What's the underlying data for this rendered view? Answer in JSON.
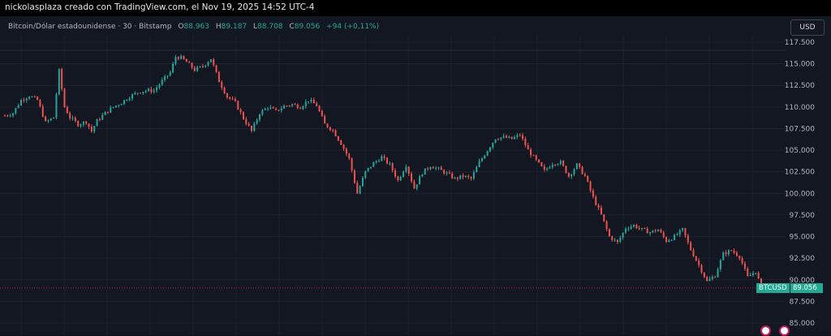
{
  "header": {
    "attribution": "nickolasplaza creado con TradingView.com, el Nov 19, 2025 14:52 UTC-4"
  },
  "legend": {
    "symbol": "Bitcoin/Dólar estadounidense · 30 · Bitstamp",
    "open_label": "O",
    "open": "88.963",
    "high_label": "H",
    "high": "89.187",
    "low_label": "L",
    "low": "88.708",
    "close_label": "C",
    "close": "89.056",
    "change": "+94 (+0,11%)"
  },
  "currency_button": "USD",
  "price_tag": {
    "symbol": "BTCUSD",
    "value": "89.056"
  },
  "colors": {
    "up": "#26a69a",
    "down": "#ef5350",
    "background": "#131722",
    "tag": "#22ab94"
  },
  "icons": [
    "us-flag-icon",
    "us-flag-icon"
  ],
  "chart_data": {
    "type": "candlestick",
    "ylim": [
      85000,
      117500
    ],
    "y_ticks": [
      117500,
      115000,
      112500,
      110000,
      107500,
      105000,
      102500,
      100000,
      97500,
      95000,
      92500,
      90000,
      87500,
      85000
    ],
    "y_tick_labels": [
      "117.500",
      "115.000",
      "112.500",
      "110.000",
      "107.500",
      "105.000",
      "102.500",
      "100.000",
      "97.500",
      "95.000",
      "92.500",
      "90.000",
      "87.500",
      "85.000"
    ],
    "grid": true,
    "current_price": 89056,
    "close_path": [
      [
        0,
        109000
      ],
      [
        3,
        109300
      ],
      [
        6,
        110800
      ],
      [
        9,
        111300
      ],
      [
        12,
        110800
      ],
      [
        15,
        108200
      ],
      [
        18,
        108800
      ],
      [
        20,
        114200
      ],
      [
        22,
        110000
      ],
      [
        24,
        108800
      ],
      [
        27,
        108000
      ],
      [
        30,
        108300
      ],
      [
        32,
        107200
      ],
      [
        34,
        108400
      ],
      [
        37,
        109300
      ],
      [
        40,
        110000
      ],
      [
        43,
        110500
      ],
      [
        46,
        111200
      ],
      [
        49,
        111700
      ],
      [
        52,
        111900
      ],
      [
        55,
        111900
      ],
      [
        58,
        113000
      ],
      [
        61,
        114000
      ],
      [
        63,
        115800
      ],
      [
        65,
        115700
      ],
      [
        67,
        115200
      ],
      [
        70,
        114300
      ],
      [
        73,
        114700
      ],
      [
        76,
        115600
      ],
      [
        79,
        113000
      ],
      [
        82,
        111200
      ],
      [
        85,
        110500
      ],
      [
        88,
        108700
      ],
      [
        91,
        107200
      ],
      [
        94,
        109300
      ],
      [
        97,
        110000
      ],
      [
        100,
        109500
      ],
      [
        103,
        110100
      ],
      [
        106,
        110300
      ],
      [
        109,
        110000
      ],
      [
        112,
        110800
      ],
      [
        115,
        110200
      ],
      [
        118,
        108000
      ],
      [
        121,
        107300
      ],
      [
        124,
        105800
      ],
      [
        127,
        104000
      ],
      [
        130,
        100000
      ],
      [
        133,
        102500
      ],
      [
        136,
        103500
      ],
      [
        139,
        104200
      ],
      [
        142,
        103300
      ],
      [
        145,
        101500
      ],
      [
        148,
        103300
      ],
      [
        151,
        100600
      ],
      [
        154,
        102400
      ],
      [
        157,
        103200
      ],
      [
        160,
        102800
      ],
      [
        163,
        102300
      ],
      [
        166,
        101700
      ],
      [
        169,
        102000
      ],
      [
        172,
        101700
      ],
      [
        175,
        103600
      ],
      [
        178,
        105000
      ],
      [
        181,
        106400
      ],
      [
        184,
        106500
      ],
      [
        187,
        106300
      ],
      [
        190,
        106800
      ],
      [
        193,
        105000
      ],
      [
        196,
        103800
      ],
      [
        199,
        102600
      ],
      [
        202,
        103500
      ],
      [
        205,
        103600
      ],
      [
        208,
        102000
      ],
      [
        211,
        103300
      ],
      [
        214,
        102000
      ],
      [
        217,
        99500
      ],
      [
        220,
        97500
      ],
      [
        223,
        95000
      ],
      [
        226,
        94300
      ],
      [
        229,
        96000
      ],
      [
        232,
        96300
      ],
      [
        235,
        95800
      ],
      [
        238,
        95500
      ],
      [
        241,
        95800
      ],
      [
        244,
        94500
      ],
      [
        247,
        95000
      ],
      [
        250,
        95800
      ],
      [
        253,
        93500
      ],
      [
        256,
        91700
      ],
      [
        259,
        89800
      ],
      [
        262,
        90500
      ],
      [
        265,
        93000
      ],
      [
        268,
        93400
      ],
      [
        271,
        92700
      ],
      [
        274,
        90300
      ],
      [
        277,
        91000
      ],
      [
        279,
        89056
      ]
    ]
  }
}
